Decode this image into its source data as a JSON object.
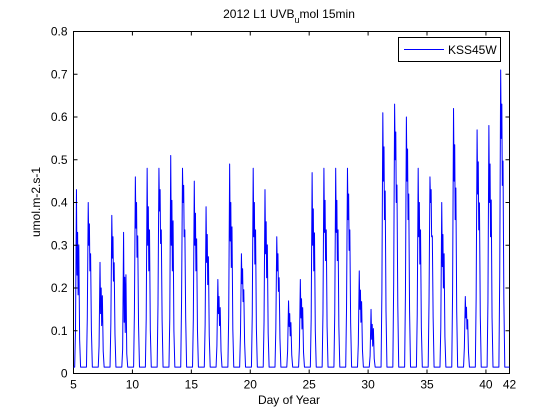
{
  "chart_data": {
    "type": "line",
    "title_parts": {
      "main": "2012 L1 UVB",
      "subscript": "u",
      "suffix": "mol 15min"
    },
    "xlabel": "Day of Year",
    "ylabel": "umol.m-2.s-1",
    "xlim": [
      5,
      42
    ],
    "ylim": [
      0,
      0.8
    ],
    "xticks": [
      5,
      10,
      15,
      20,
      25,
      30,
      35,
      40,
      42
    ],
    "yticks": [
      0,
      0.1,
      0.2,
      0.3,
      0.4,
      0.5,
      0.6,
      0.7,
      0.8
    ],
    "ytick_labels": [
      "0",
      "0.1",
      "0.2",
      "0.3",
      "0.4",
      "0.5",
      "0.6",
      "0.7",
      "0.8"
    ],
    "xtick_labels": [
      "5",
      "10",
      "15",
      "20",
      "25",
      "30",
      "35",
      "40",
      "42"
    ],
    "grid": false,
    "legend_position": "top-right",
    "baseline": 0.015,
    "series": [
      {
        "name": "KSS45W",
        "color": "#0000ff",
        "daily_peaks": [
          {
            "day": 5.35,
            "peak": 0.43,
            "dip": 0.23
          },
          {
            "day": 6.35,
            "peak": 0.4,
            "dip": 0.3
          },
          {
            "day": 7.35,
            "peak": 0.26,
            "dip": 0.14
          },
          {
            "day": 8.35,
            "peak": 0.37,
            "dip": 0.27
          },
          {
            "day": 9.35,
            "peak": 0.33,
            "dip": 0.12
          },
          {
            "day": 10.35,
            "peak": 0.46,
            "dip": 0.34
          },
          {
            "day": 11.35,
            "peak": 0.48,
            "dip": 0.3
          },
          {
            "day": 12.35,
            "peak": 0.48,
            "dip": 0.38
          },
          {
            "day": 13.35,
            "peak": 0.51,
            "dip": 0.3
          },
          {
            "day": 14.35,
            "peak": 0.48,
            "dip": 0.4
          },
          {
            "day": 15.35,
            "peak": 0.45,
            "dip": 0.3
          },
          {
            "day": 16.35,
            "peak": 0.39,
            "dip": 0.26
          },
          {
            "day": 17.35,
            "peak": 0.22,
            "dip": 0.14
          },
          {
            "day": 18.35,
            "peak": 0.49,
            "dip": 0.31
          },
          {
            "day": 19.35,
            "peak": 0.28,
            "dip": 0.21
          },
          {
            "day": 20.35,
            "peak": 0.48,
            "dip": 0.32
          },
          {
            "day": 21.35,
            "peak": 0.43,
            "dip": 0.28
          },
          {
            "day": 22.35,
            "peak": 0.32,
            "dip": 0.24
          },
          {
            "day": 23.35,
            "peak": 0.17,
            "dip": 0.11
          },
          {
            "day": 24.35,
            "peak": 0.22,
            "dip": 0.13
          },
          {
            "day": 25.35,
            "peak": 0.47,
            "dip": 0.3
          },
          {
            "day": 26.35,
            "peak": 0.48,
            "dip": 0.33
          },
          {
            "day": 27.35,
            "peak": 0.48,
            "dip": 0.33
          },
          {
            "day": 28.35,
            "peak": 0.48,
            "dip": 0.36
          },
          {
            "day": 29.35,
            "peak": 0.24,
            "dip": 0.15
          },
          {
            "day": 30.35,
            "peak": 0.15,
            "dip": 0.08
          },
          {
            "day": 31.35,
            "peak": 0.61,
            "dip": 0.45
          },
          {
            "day": 32.35,
            "peak": 0.63,
            "dip": 0.5
          },
          {
            "day": 33.35,
            "peak": 0.6,
            "dip": 0.45
          },
          {
            "day": 34.35,
            "peak": 0.48,
            "dip": 0.32
          },
          {
            "day": 35.35,
            "peak": 0.46,
            "dip": 0.4
          },
          {
            "day": 36.35,
            "peak": 0.4,
            "dip": 0.25
          },
          {
            "day": 37.35,
            "peak": 0.62,
            "dip": 0.45
          },
          {
            "day": 38.35,
            "peak": 0.18,
            "dip": 0.13
          },
          {
            "day": 39.35,
            "peak": 0.57,
            "dip": 0.42
          },
          {
            "day": 40.35,
            "peak": 0.58,
            "dip": 0.4
          },
          {
            "day": 41.35,
            "peak": 0.71,
            "dip": 0.55
          }
        ]
      }
    ]
  }
}
